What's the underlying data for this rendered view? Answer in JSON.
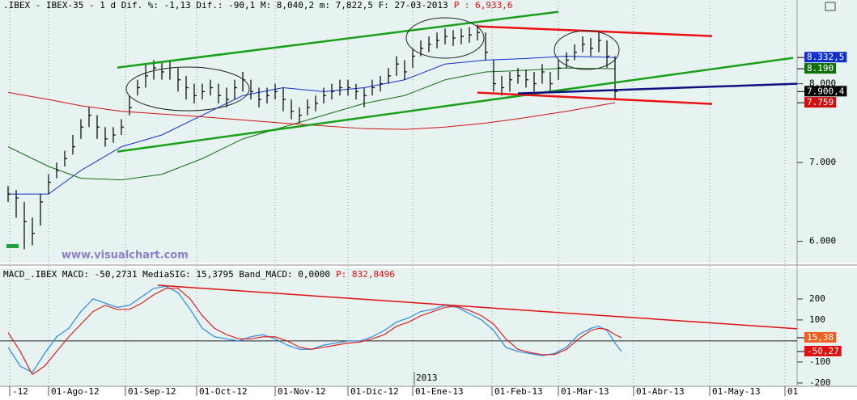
{
  "chart_data": [
    {
      "type": "ohlc",
      "title": ".IBEX - IBEX-35 - 1 d Dif. %: -1,13 Dif.: -90,1 M: 8,040,2 m: 7,822,5 F: 27-03-2013",
      "title_extra": "P : 6,933,6",
      "watermark": "www.visualchart.com",
      "color": "#000000",
      "xlim": [
        -1,
        97.5
      ],
      "xticks": [
        {
          "value": 0.2,
          "label": "-12"
        },
        {
          "value": 5,
          "label": "01-Ago-12"
        },
        {
          "value": 14.5,
          "label": "01-Sep-12"
        },
        {
          "value": 23.3,
          "label": "01-Oct-12"
        },
        {
          "value": 33,
          "label": "01-Nov-12"
        },
        {
          "value": 42,
          "label": "01-Dic-12"
        },
        {
          "value": 50,
          "label": "01-Ene-13"
        },
        {
          "value": 59.8,
          "label": "01-Feb-13"
        },
        {
          "value": 68,
          "label": "01-Mar-13"
        },
        {
          "value": 77.3,
          "label": "01-Abr-13"
        },
        {
          "value": 86.7,
          "label": "01-May-13"
        },
        {
          "value": 96,
          "label": "01"
        }
      ],
      "year_marker": {
        "value": 50.2,
        "label": "2013"
      },
      "ylim": [
        5750,
        8960
      ],
      "yticks": [
        {
          "value": 6000,
          "label": "6.000"
        },
        {
          "value": 7000,
          "label": "7.000"
        },
        {
          "value": 8000,
          "label": "8.000"
        }
      ],
      "high": [
        6700,
        6650,
        6500,
        6300,
        6600,
        6850,
        7000,
        7150,
        7350,
        7550,
        7700,
        7600,
        7450,
        7450,
        7550,
        7850,
        8050,
        8250,
        8300,
        8280,
        8300,
        8200,
        8100,
        8000,
        8000,
        8050,
        8000,
        7950,
        8050,
        8150,
        8050,
        7950,
        7950,
        8000,
        7950,
        7800,
        7700,
        7800,
        7850,
        7950,
        8000,
        8050,
        8050,
        8000,
        7950,
        8050,
        8100,
        8200,
        8350,
        8300,
        8450,
        8550,
        8600,
        8650,
        8700,
        8680,
        8700,
        8720,
        8750,
        8650,
        8300,
        8100,
        8150,
        8200,
        8180,
        8150,
        8250,
        8150,
        8300,
        8400,
        8500,
        8600,
        8580,
        8650,
        8550,
        8350
      ],
      "low": [
        6500,
        6300,
        5900,
        5950,
        6200,
        6600,
        6800,
        6950,
        7100,
        7300,
        7450,
        7300,
        7200,
        7250,
        7350,
        7600,
        7850,
        7950,
        8050,
        8050,
        8050,
        7900,
        7800,
        7750,
        7800,
        7850,
        7750,
        7700,
        7800,
        7900,
        7800,
        7700,
        7750,
        7800,
        7650,
        7550,
        7500,
        7600,
        7650,
        7750,
        7800,
        7850,
        7850,
        7800,
        7700,
        7850,
        7900,
        8000,
        8100,
        8050,
        8200,
        8350,
        8400,
        8450,
        8500,
        8480,
        8500,
        8520,
        8550,
        8300,
        7900,
        7850,
        7900,
        8000,
        7950,
        7900,
        8000,
        7900,
        8050,
        8200,
        8300,
        8400,
        8350,
        8400,
        8200,
        7800
      ],
      "close": [
        6600,
        6550,
        6250,
        6100,
        6500,
        6750,
        6900,
        7050,
        7200,
        7450,
        7600,
        7450,
        7300,
        7350,
        7450,
        7700,
        7950,
        8100,
        8200,
        8150,
        8200,
        8050,
        7950,
        7850,
        7900,
        7950,
        7850,
        7800,
        7950,
        8050,
        7900,
        7800,
        7850,
        7900,
        7800,
        7650,
        7600,
        7700,
        7750,
        7850,
        7900,
        7950,
        7950,
        7900,
        7850,
        7950,
        8000,
        8100,
        8250,
        8150,
        8350,
        8450,
        8500,
        8550,
        8600,
        8580,
        8600,
        8620,
        8650,
        8400,
        8000,
        7950,
        8050,
        8100,
        8050,
        8000,
        8150,
        8000,
        8200,
        8300,
        8400,
        8500,
        8450,
        8550,
        8350,
        7900.4
      ],
      "last_close_label": "7.900,4",
      "indicators": [
        {
          "color": "#1030d0",
          "x": [
            0,
            5,
            9,
            14,
            19,
            24,
            29,
            34,
            39,
            44,
            49,
            54,
            59,
            64,
            69,
            75
          ],
          "values": [
            6600,
            6600,
            6900,
            7200,
            7350,
            7600,
            7850,
            7950,
            7900,
            7950,
            8050,
            8250,
            8300,
            8320,
            8350,
            8332.5
          ],
          "last_label": "8.332,5"
        },
        {
          "color": "#107010",
          "x": [
            0,
            5,
            9,
            14,
            19,
            24,
            29,
            34,
            39,
            44,
            49,
            54,
            59,
            64,
            69,
            75
          ],
          "values": [
            7200,
            6950,
            6800,
            6780,
            6850,
            7050,
            7300,
            7450,
            7600,
            7750,
            7850,
            8050,
            8150,
            8170,
            8200,
            8190
          ],
          "last_label": "8.190"
        },
        {
          "color": "#d01010",
          "x": [
            0,
            5,
            9,
            14,
            24,
            34,
            44,
            49,
            54,
            59,
            64,
            69,
            75
          ],
          "values": [
            7890,
            7800,
            7720,
            7650,
            7580,
            7500,
            7430,
            7420,
            7450,
            7500,
            7570,
            7650,
            7759
          ],
          "last_label": "7.759"
        }
      ],
      "trendlines": [
        {
          "color": "#18a018",
          "x": [
            13.5,
            68
          ],
          "values": [
            8205,
            8913
          ]
        },
        {
          "color": "#18a018",
          "x": [
            13.5,
            97
          ],
          "values": [
            7138,
            8328
          ]
        },
        {
          "color": "#ee1010",
          "x": [
            58,
            87
          ],
          "values": [
            8728,
            8605
          ]
        },
        {
          "color": "#ee1010",
          "x": [
            58,
            87
          ],
          "values": [
            7887,
            7744
          ]
        },
        {
          "color": "#101080",
          "x": [
            63,
            97.5
          ],
          "values": [
            7877,
            8000
          ]
        }
      ]
    },
    {
      "type": "line",
      "title": "MACD_.IBEX MACD: -50,2731 MediaSIG: 15,3795 Band_MACD: 0,0000",
      "title_extra": "P: 832,8496",
      "ylim": [
        -208,
        342
      ],
      "yticks": [
        200,
        100,
        -100,
        -200
      ],
      "band": 0,
      "x": [
        0,
        1.5,
        3,
        4.5,
        6,
        7.5,
        9,
        10.5,
        12,
        13.5,
        15,
        16.5,
        18,
        19.5,
        21,
        22.5,
        24,
        25.5,
        27,
        28.5,
        30,
        31.5,
        33,
        34.5,
        36,
        37.5,
        39,
        40.5,
        42,
        43.5,
        45,
        46.5,
        48,
        49.5,
        51,
        52.5,
        54,
        55.5,
        57,
        58.5,
        60,
        61.5,
        63,
        64.5,
        66,
        67.5,
        69,
        70.5,
        72,
        73,
        74,
        75,
        75.8
      ],
      "series": [
        {
          "color": "#2a8ae8",
          "label_color": "#e01010",
          "values": [
            -30,
            -120,
            -150,
            -60,
            20,
            60,
            140,
            200,
            180,
            160,
            170,
            210,
            250,
            260,
            230,
            150,
            60,
            20,
            10,
            0,
            20,
            30,
            10,
            -20,
            -40,
            -40,
            -20,
            -10,
            0,
            0,
            20,
            50,
            90,
            110,
            140,
            150,
            170,
            160,
            130,
            100,
            50,
            -30,
            -50,
            -60,
            -70,
            -60,
            -30,
            30,
            60,
            70,
            50,
            -10,
            -50.27
          ],
          "last_label": "-50,27"
        },
        {
          "color": "#e02020",
          "label_color": "#f06020",
          "values": [
            40,
            -50,
            -160,
            -120,
            -50,
            20,
            80,
            140,
            170,
            150,
            150,
            180,
            220,
            250,
            250,
            200,
            120,
            60,
            30,
            10,
            10,
            20,
            20,
            0,
            -30,
            -40,
            -30,
            -20,
            -10,
            -5,
            10,
            30,
            70,
            90,
            120,
            140,
            160,
            165,
            145,
            120,
            80,
            10,
            -40,
            -55,
            -65,
            -65,
            -40,
            10,
            50,
            60,
            55,
            30,
            15.38
          ],
          "last_label": "15,38"
        }
      ],
      "trendlines": [
        {
          "color": "#e01010",
          "x": [
            18.5,
            97.5
          ],
          "values": [
            265,
            58
          ]
        }
      ]
    }
  ]
}
